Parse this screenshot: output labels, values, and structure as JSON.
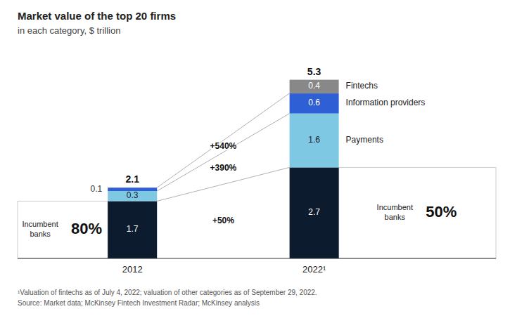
{
  "chart_data": {
    "type": "bar",
    "stacked": true,
    "data_labels": true,
    "tick_labels": "x",
    "title": "Market value of the top 20 firms",
    "subtitle": "in each category, $ trillion",
    "categories": [
      "2012",
      "2022¹"
    ],
    "ylim": [
      0,
      6
    ],
    "series": [
      {
        "name": "Incumbent\nbanks",
        "color": "#0d1b2e",
        "values": [
          1.7,
          2.7
        ],
        "shares": [
          80,
          50
        ],
        "share_labels": [
          "80%",
          "50%"
        ],
        "growth": 50,
        "growth_label": "+50%"
      },
      {
        "name": "Payments",
        "color": "#7ec8e3",
        "values": [
          0.3,
          1.6
        ],
        "growth": 390,
        "growth_label": "+390%"
      },
      {
        "name": "Information providers",
        "color": "#2e5fd4",
        "values": [
          0.1,
          0.6
        ],
        "growth": 540,
        "growth_label": "+540%"
      },
      {
        "name": "Fintechs",
        "color": "#888888",
        "values": [
          0.0,
          0.4
        ]
      }
    ],
    "totals": [
      2.1,
      5.3
    ],
    "notes": [
      "¹Valuation of fintechs as of July 4, 2022; valuation of other categories as of September 29, 2022.",
      "Source: Market data; McKinsey Fintech Investment Radar; McKinsey analysis"
    ]
  }
}
